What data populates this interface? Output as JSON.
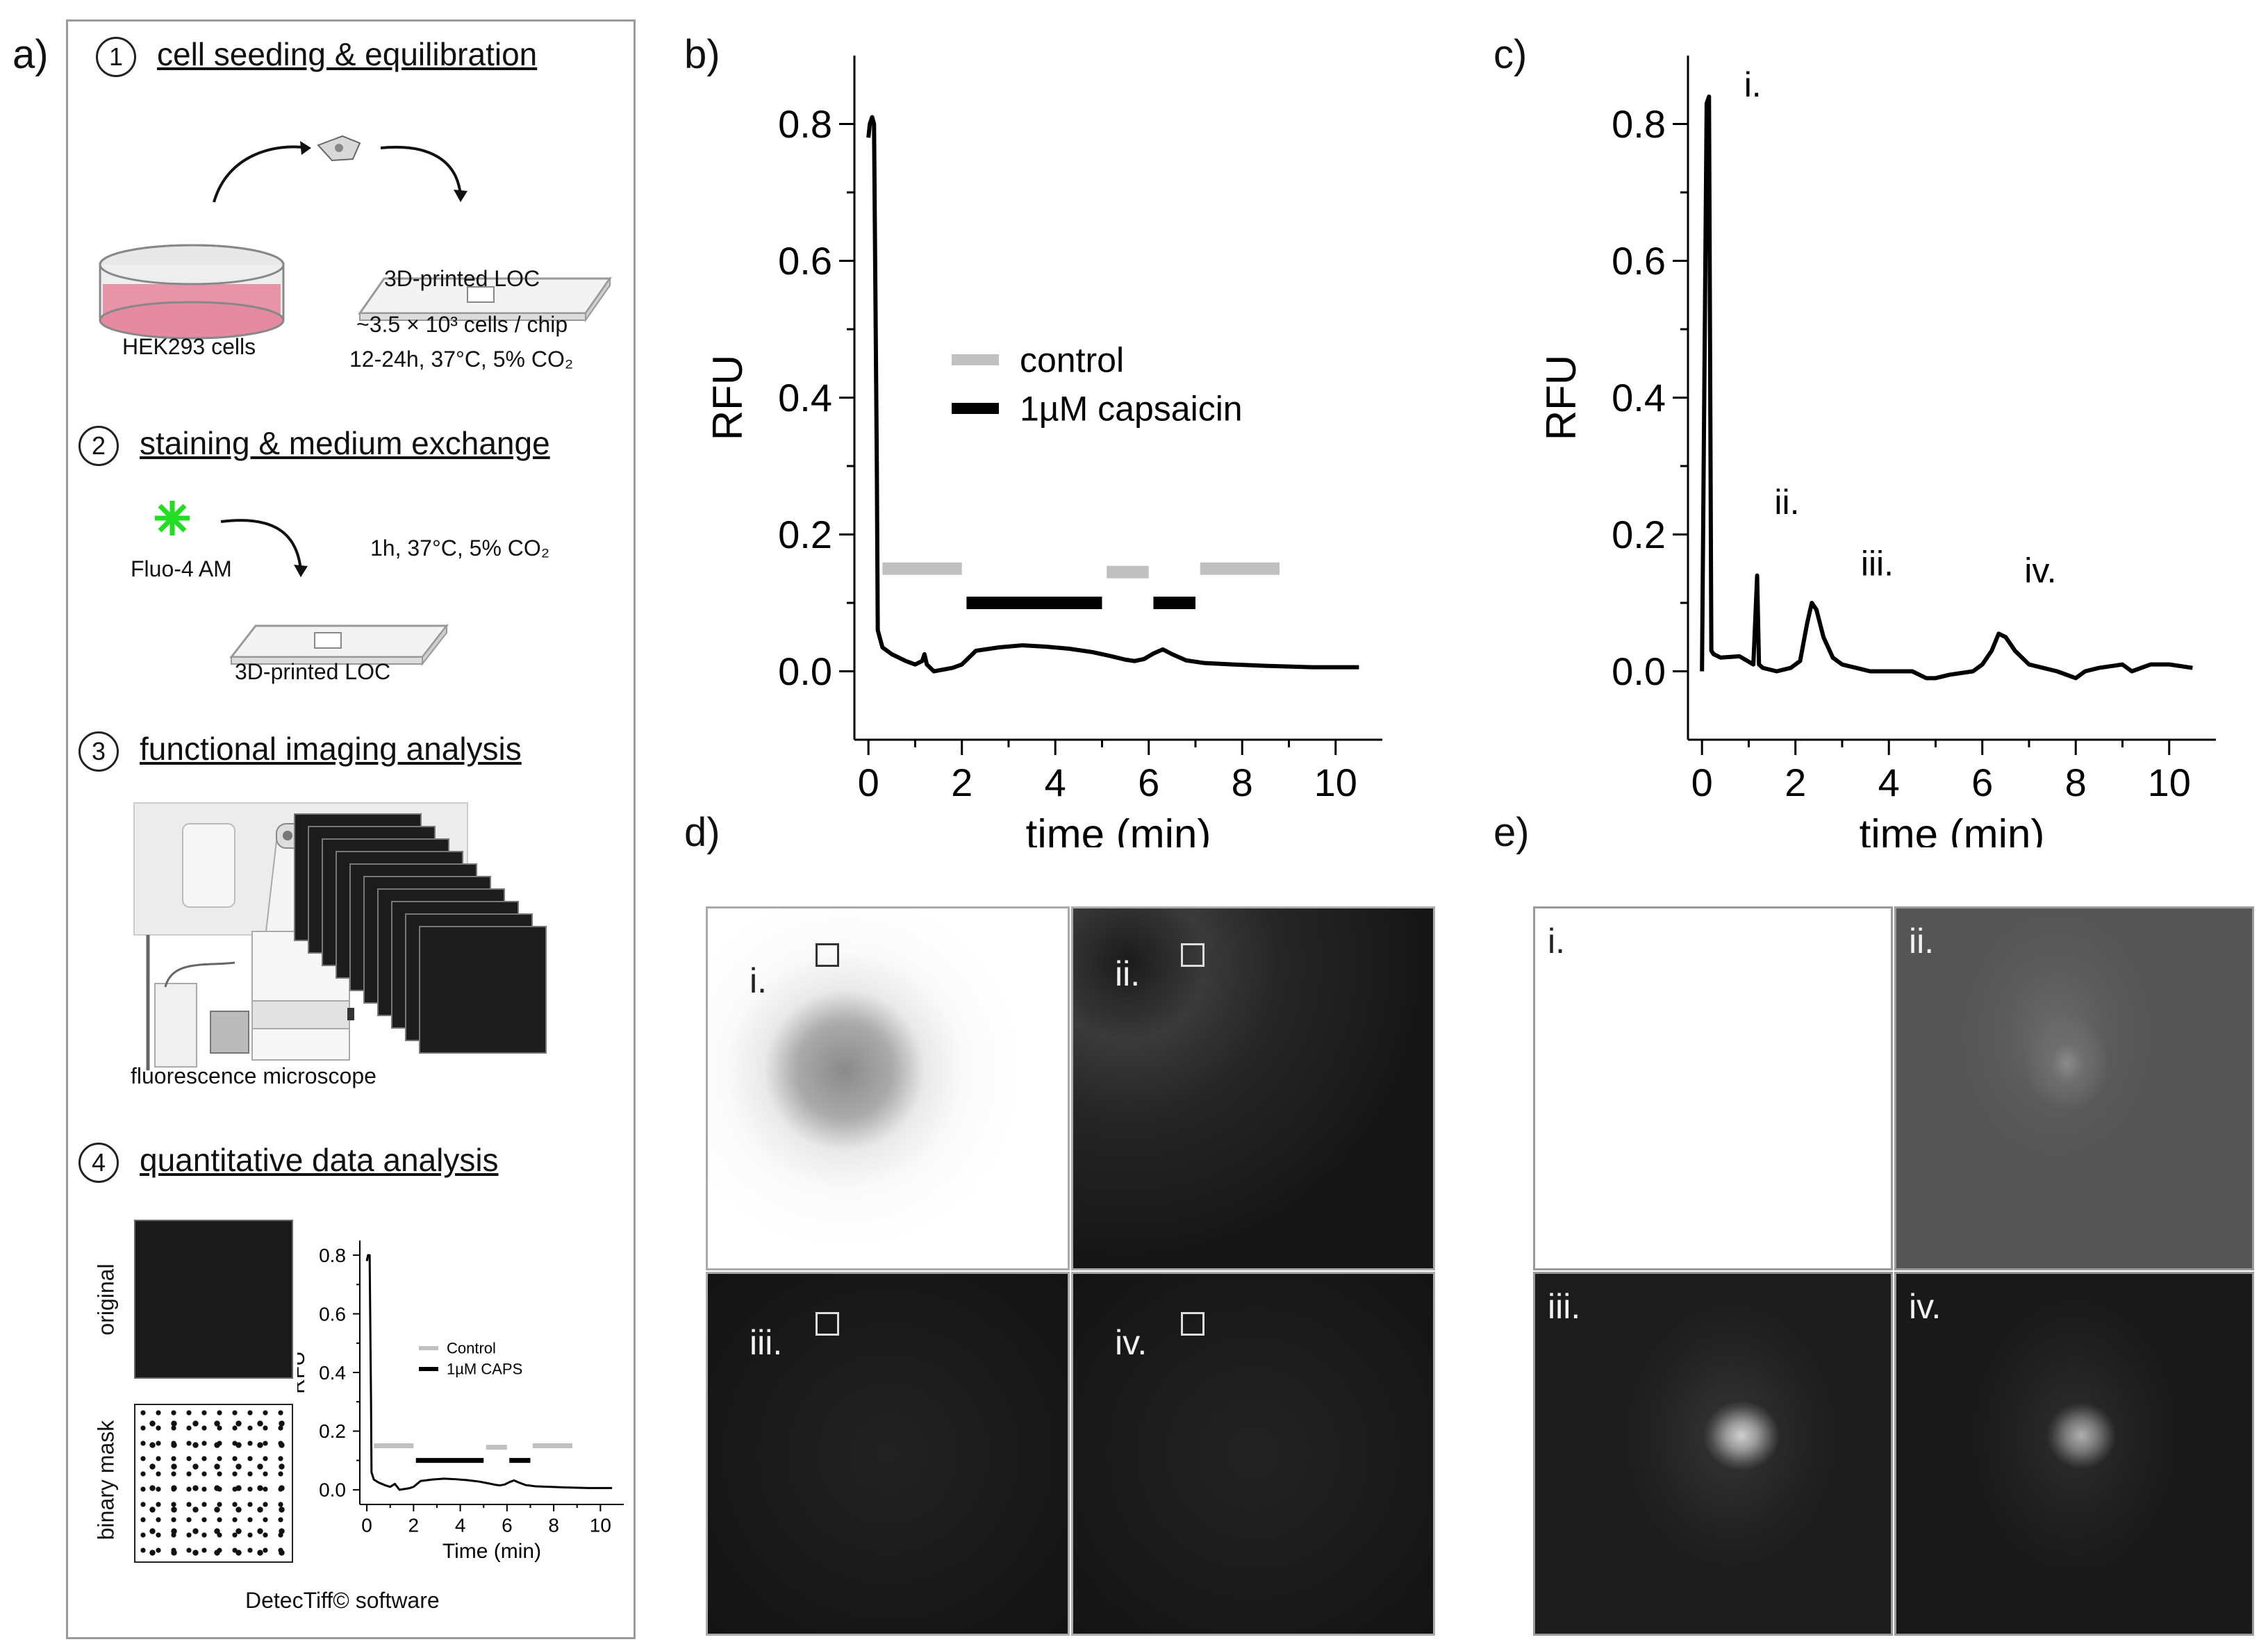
{
  "panels": {
    "a": "a)",
    "b": "b)",
    "c": "c)",
    "d": "d)",
    "e": "e)"
  },
  "steps": [
    {
      "num": "1",
      "title": "cell seeding & equilibration"
    },
    {
      "num": "2",
      "title": "staining & medium exchange"
    },
    {
      "num": "3",
      "title": "functional imaging analysis"
    },
    {
      "num": "4",
      "title": "quantitative data analysis"
    }
  ],
  "labels": {
    "hek": "HEK293 cells",
    "loc1": "3D-printed LOC",
    "cells_per_chip": "~3.5 × 10³ cells / chip",
    "incubation1": "12-24h, 37°C, 5% CO₂",
    "fluo": "Fluo-4 AM",
    "incubation2": "1h, 37°C, 5% CO₂",
    "loc2": "3D-printed LOC",
    "microscope": "fluorescence microscope",
    "original": "original",
    "binary_mask": "binary mask",
    "software": "DetecTiff© software"
  },
  "mini_chart": {
    "ylabel": "RFU",
    "xlabel": "Time (min)",
    "legend_control": "Control",
    "legend_caps": "1µM CAPS"
  },
  "image_labels": {
    "d": [
      "i.",
      "ii.",
      "iii.",
      "iv."
    ],
    "e": [
      "i.",
      "ii.",
      "iii.",
      "iv."
    ]
  },
  "colors": {
    "control": "#c0c0c0",
    "capsaicin": "#000000",
    "pink_medium": "#e58aa0",
    "dye": "#22dd22"
  },
  "chart_data": [
    {
      "id": "b",
      "type": "line",
      "xlabel": "time (min)",
      "ylabel": "RFU",
      "xlim": [
        -0.3,
        11.0
      ],
      "ylim": [
        -0.1,
        0.9
      ],
      "xticks": [
        0,
        2,
        4,
        6,
        8,
        10
      ],
      "yticks": [
        0.0,
        0.2,
        0.4,
        0.6,
        0.8
      ],
      "legend": [
        {
          "name": "control",
          "color": "#c0c0c0"
        },
        {
          "name": "1µM capsaicin",
          "color": "#000000"
        }
      ],
      "legend_position": "center",
      "intervals": [
        {
          "kind": "control",
          "x0": 0.3,
          "x1": 2.0,
          "y": 0.15
        },
        {
          "kind": "capsaicin",
          "x0": 2.1,
          "x1": 5.0,
          "y": 0.1
        },
        {
          "kind": "control",
          "x0": 5.1,
          "x1": 6.0,
          "y": 0.145
        },
        {
          "kind": "capsaicin",
          "x0": 6.1,
          "x1": 7.0,
          "y": 0.1
        },
        {
          "kind": "control",
          "x0": 7.1,
          "x1": 8.8,
          "y": 0.15
        }
      ],
      "series": [
        {
          "x": [
            0.0,
            0.03,
            0.08,
            0.12,
            0.18,
            0.2,
            0.3,
            0.5,
            0.8,
            1.0,
            1.15,
            1.2,
            1.25,
            1.4,
            1.8,
            2.0,
            2.3,
            2.8,
            3.3,
            3.8,
            4.3,
            4.8,
            5.2,
            5.5,
            5.7,
            5.9,
            6.1,
            6.3,
            6.5,
            6.8,
            7.2,
            7.8,
            8.5,
            9.5,
            10.5
          ],
          "y": [
            0.78,
            0.8,
            0.81,
            0.8,
            0.3,
            0.06,
            0.035,
            0.025,
            0.015,
            0.01,
            0.015,
            0.025,
            0.01,
            0.0,
            0.005,
            0.01,
            0.03,
            0.035,
            0.038,
            0.036,
            0.033,
            0.028,
            0.022,
            0.017,
            0.015,
            0.018,
            0.026,
            0.032,
            0.025,
            0.016,
            0.012,
            0.01,
            0.008,
            0.006,
            0.006
          ]
        }
      ]
    },
    {
      "id": "c",
      "type": "line",
      "xlabel": "time (min)",
      "ylabel": "RFU",
      "xlim": [
        -0.3,
        11.0
      ],
      "ylim": [
        -0.1,
        0.9
      ],
      "xticks": [
        0,
        2,
        4,
        6,
        8,
        10
      ],
      "yticks": [
        0.0,
        0.2,
        0.4,
        0.6,
        0.8
      ],
      "annotations": [
        {
          "text": "i.",
          "x": 0.9,
          "y": 0.84
        },
        {
          "text": "ii.",
          "x": 1.55,
          "y": 0.23
        },
        {
          "text": "iii.",
          "x": 3.4,
          "y": 0.14
        },
        {
          "text": "iv.",
          "x": 6.9,
          "y": 0.13
        }
      ],
      "series": [
        {
          "x": [
            0.0,
            0.1,
            0.15,
            0.2,
            0.25,
            0.4,
            0.8,
            1.1,
            1.18,
            1.22,
            1.3,
            1.6,
            1.9,
            2.1,
            2.25,
            2.35,
            2.45,
            2.6,
            2.8,
            3.0,
            3.3,
            3.6,
            4.0,
            4.5,
            4.8,
            5.0,
            5.3,
            5.8,
            6.0,
            6.2,
            6.35,
            6.5,
            6.7,
            7.0,
            7.3,
            7.6,
            8.0,
            8.2,
            8.5,
            9.0,
            9.2,
            9.6,
            10.0,
            10.5
          ],
          "y": [
            0.0,
            0.83,
            0.84,
            0.03,
            0.025,
            0.02,
            0.022,
            0.01,
            0.14,
            0.01,
            0.005,
            0.0,
            0.005,
            0.015,
            0.07,
            0.1,
            0.09,
            0.05,
            0.02,
            0.01,
            0.005,
            0.0,
            0.0,
            0.0,
            -0.01,
            -0.01,
            -0.005,
            0.0,
            0.01,
            0.03,
            0.055,
            0.05,
            0.03,
            0.01,
            0.005,
            0.0,
            -0.01,
            0.0,
            0.005,
            0.01,
            0.0,
            0.01,
            0.01,
            0.005
          ]
        }
      ]
    },
    {
      "id": "a4",
      "type": "line",
      "xlabel": "Time (min)",
      "ylabel": "RFU",
      "xlim": [
        -0.3,
        11.0
      ],
      "ylim": [
        -0.05,
        0.85
      ],
      "xticks": [
        0,
        2,
        4,
        6,
        8,
        10
      ],
      "yticks": [
        0.0,
        0.2,
        0.4,
        0.6,
        0.8
      ],
      "legend": [
        {
          "name": "Control",
          "color": "#c0c0c0"
        },
        {
          "name": "1µM CAPS",
          "color": "#000000"
        }
      ],
      "legend_position": "center",
      "intervals": [
        {
          "kind": "control",
          "x0": 0.3,
          "x1": 2.0,
          "y": 0.15
        },
        {
          "kind": "capsaicin",
          "x0": 2.1,
          "x1": 5.0,
          "y": 0.1
        },
        {
          "kind": "control",
          "x0": 5.1,
          "x1": 6.0,
          "y": 0.145
        },
        {
          "kind": "capsaicin",
          "x0": 6.1,
          "x1": 7.0,
          "y": 0.1
        },
        {
          "kind": "control",
          "x0": 7.1,
          "x1": 8.8,
          "y": 0.15
        }
      ],
      "series": [
        {
          "x": [
            0.0,
            0.05,
            0.12,
            0.18,
            0.2,
            0.3,
            0.5,
            0.8,
            1.0,
            1.2,
            1.4,
            1.8,
            2.0,
            2.3,
            2.8,
            3.3,
            3.8,
            4.3,
            4.8,
            5.2,
            5.5,
            5.7,
            5.9,
            6.1,
            6.3,
            6.5,
            6.8,
            7.2,
            7.8,
            8.5,
            9.5,
            10.5
          ],
          "y": [
            0.78,
            0.8,
            0.8,
            0.3,
            0.06,
            0.035,
            0.025,
            0.015,
            0.01,
            0.02,
            0.0,
            0.005,
            0.01,
            0.03,
            0.035,
            0.038,
            0.036,
            0.033,
            0.028,
            0.022,
            0.017,
            0.015,
            0.018,
            0.026,
            0.032,
            0.025,
            0.016,
            0.012,
            0.01,
            0.008,
            0.006,
            0.006
          ]
        }
      ]
    }
  ]
}
